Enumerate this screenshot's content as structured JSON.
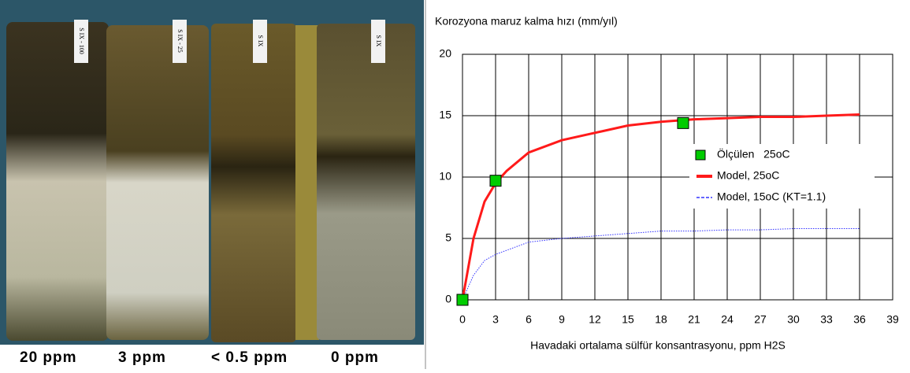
{
  "photo": {
    "captions": [
      "20 ppm",
      "3 ppm",
      "< 0.5 ppm",
      "0 ppm"
    ],
    "tags": [
      "S IX - 100",
      "S IX - 25",
      "S IX",
      "S IX"
    ]
  },
  "chart_data": {
    "type": "line",
    "title": "Korozyona maruz kalma hızı (mm/yıl)",
    "x_label": "Havadaki ortalama sülfür konsantrasyonu, ppm H2S",
    "xlim": [
      0,
      39
    ],
    "xticks": [
      0,
      3,
      6,
      9,
      12,
      15,
      18,
      21,
      24,
      27,
      30,
      33,
      36,
      39
    ],
    "ylim": [
      0,
      20
    ],
    "yticks": [
      0,
      5,
      10,
      15,
      20
    ],
    "grid": true,
    "series": [
      {
        "name": "Ölçülen   25oC",
        "type": "scatter",
        "color": "#00cc00",
        "x": [
          0,
          3,
          20
        ],
        "values": [
          0,
          9.7,
          14.4
        ]
      },
      {
        "name": "Model, 25oC",
        "type": "line",
        "color": "#ff1a1a",
        "x": [
          0,
          1,
          2,
          3,
          4,
          6,
          9,
          12,
          15,
          18,
          21,
          24,
          27,
          30,
          33,
          36
        ],
        "values": [
          0,
          5,
          8,
          9.5,
          10.5,
          12,
          13,
          13.6,
          14.2,
          14.5,
          14.7,
          14.8,
          14.9,
          14.9,
          15,
          15.1
        ]
      },
      {
        "name": "Model, 15oC (KT=1.1)",
        "type": "dotted",
        "color": "#3333ff",
        "x": [
          0,
          1,
          2,
          3,
          6,
          9,
          12,
          15,
          18,
          21,
          24,
          27,
          30,
          33,
          36
        ],
        "values": [
          0,
          2,
          3.2,
          3.7,
          4.7,
          5.0,
          5.2,
          5.4,
          5.6,
          5.6,
          5.7,
          5.7,
          5.8,
          5.8,
          5.8
        ]
      }
    ]
  }
}
